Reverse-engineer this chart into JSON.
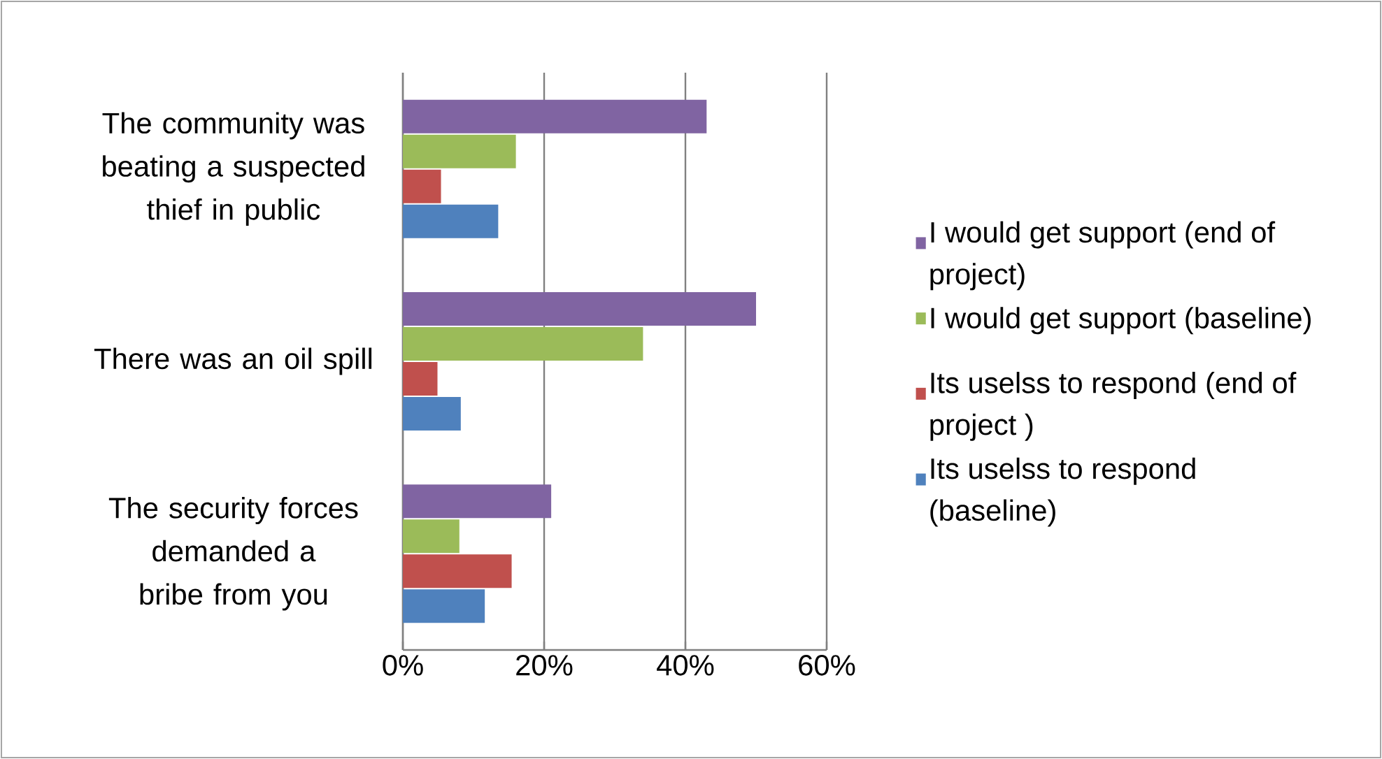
{
  "chart_data": {
    "type": "bar",
    "orientation": "horizontal",
    "categories": [
      "The community was beating a suspected thief in public",
      "There was an oil spill",
      "The security forces demanded a bribe from you"
    ],
    "series": [
      {
        "name": "I would get support (end of project)",
        "color": "#8064a2",
        "values": [
          43,
          50,
          21
        ]
      },
      {
        "name": "I would get support (baseline)",
        "color": "#9bbb59",
        "values": [
          16,
          34,
          8
        ]
      },
      {
        "name": "Its uselss to respond (end of project )",
        "color": "#c0504d",
        "values": [
          5.4,
          4.9,
          15.4
        ]
      },
      {
        "name": "Its uselss to respond (baseline)",
        "color": "#4f81bd",
        "values": [
          13.5,
          8.2,
          11.6
        ]
      }
    ],
    "xlim": [
      0,
      60
    ],
    "xticks": [
      {
        "value": 0,
        "label": "0%"
      },
      {
        "value": 20,
        "label": "20%"
      },
      {
        "value": 40,
        "label": "40%"
      },
      {
        "value": 60,
        "label": "60%"
      }
    ],
    "grid": "x",
    "legend": "right"
  }
}
